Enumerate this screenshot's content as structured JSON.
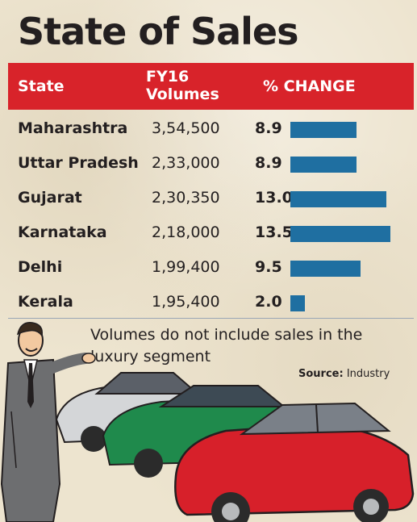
{
  "title": "State of Sales",
  "columns": {
    "state": "State",
    "volumes_line1": "FY16",
    "volumes_line2": "Volumes",
    "change": "% CHANGE"
  },
  "rows": [
    {
      "state": "Maharashtra",
      "volume": "3,54,500",
      "change": "8.9"
    },
    {
      "state": "Uttar Pradesh",
      "volume": "2,33,000",
      "change": "8.9"
    },
    {
      "state": "Gujarat",
      "volume": "2,30,350",
      "change": "13.0"
    },
    {
      "state": "Karnataka",
      "volume": "2,18,000",
      "change": "13.5"
    },
    {
      "state": "Delhi",
      "volume": "1,99,400",
      "change": "9.5"
    },
    {
      "state": "Kerala",
      "volume": "1,95,400",
      "change": "2.0"
    }
  ],
  "note": "Volumes do not include sales in the luxury segment",
  "source_label": "Source:",
  "source_value": " Industry",
  "colors": {
    "header": "#d8232a",
    "bar": "#1f6fa1"
  },
  "chart_data": {
    "type": "bar",
    "categories": [
      "Maharashtra",
      "Uttar Pradesh",
      "Gujarat",
      "Karnataka",
      "Delhi",
      "Kerala"
    ],
    "series": [
      {
        "name": "FY16 Volumes",
        "values": [
          354500,
          233000,
          230350,
          218000,
          199400,
          195400
        ]
      },
      {
        "name": "% CHANGE",
        "values": [
          8.9,
          8.9,
          13.0,
          13.5,
          9.5,
          2.0
        ]
      }
    ],
    "title": "State of Sales"
  }
}
